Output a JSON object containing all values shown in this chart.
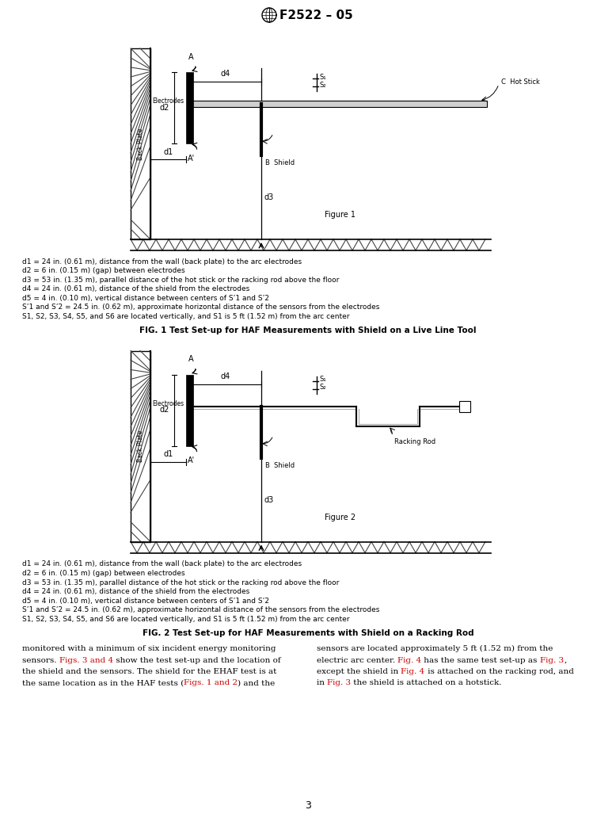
{
  "title": "F2522 – 05",
  "fig1_caption": "FIG. 1 Test Set-up for HAF Measurements with Shield on a Live Line Tool",
  "fig2_caption": "FIG. 2 Test Set-up for HAF Measurements with Shield on a Racking Rod",
  "fig1_label": "Figure 1",
  "fig2_label": "Figure 2",
  "legend_lines": [
    "d1 = 24 in. (0.61 m), distance from the wall (back plate) to the arc electrodes",
    "d2 = 6 in. (0.15 m) (gap) between electrodes",
    "d3 = 53 in. (1.35 m), parallel distance of the hot stick or the racking rod above the floor",
    "d4 = 24 in. (0.61 m), distance of the shield from the electrodes",
    "d5 = 4 in. (0.10 m), vertical distance between centers of S’1 and S’2",
    "S’1 and S’2 = 24.5 in. (0.62 m), approximate horizontal distance of the sensors from the electrodes",
    "S1, S2, S3, S4, S5, and S6 are located vertically, and S1 is 5 ft (1.52 m) from the arc center"
  ],
  "body_left": [
    "monitored with a minimum of six incident energy monitoring",
    "sensors. |Figs. 3 and 4| show the test set-up and the location of",
    "the shield and the sensors. The shield for the EHAF test is at",
    "the same location as in the HAF tests (|Figs. 1 and 2|) and the"
  ],
  "body_right": [
    "sensors are located approximately 5 ft (1.52 m) from the",
    "electric arc center. |Fig. 4| has the same test set-up as |Fig. 3|,",
    "except the shield in |Fig. 4| is attached on the racking rod, and",
    "in |Fig. 3| the shield is attached on a hotstick."
  ],
  "page_number": "3",
  "bg": "#ffffff",
  "lc": "#000000",
  "tc": "#000000",
  "red": "#cc0000"
}
